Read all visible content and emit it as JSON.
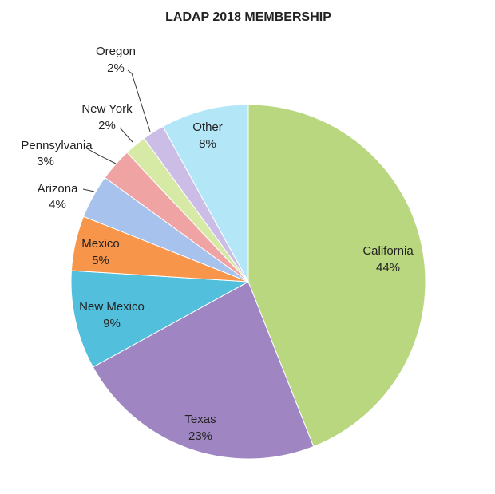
{
  "chart_data": {
    "type": "pie",
    "title": "LADAP 2018 MEMBERSHIP",
    "categories": [
      "California",
      "Texas",
      "New Mexico",
      "Mexico",
      "Arizona",
      "Pennsylvania",
      "New York",
      "Oregon",
      "Other"
    ],
    "values": [
      44,
      23,
      9,
      5,
      4,
      3,
      2,
      2,
      8
    ],
    "value_labels": [
      "44%",
      "23%",
      "9%",
      "5%",
      "4%",
      "3%",
      "2%",
      "2%",
      "8%"
    ],
    "colors": [
      "#b9d77f",
      "#9f86c2",
      "#52bfdc",
      "#f7964a",
      "#a8c2ee",
      "#f0a3a3",
      "#d6eaa6",
      "#cbbde6",
      "#b3e7f8"
    ]
  }
}
